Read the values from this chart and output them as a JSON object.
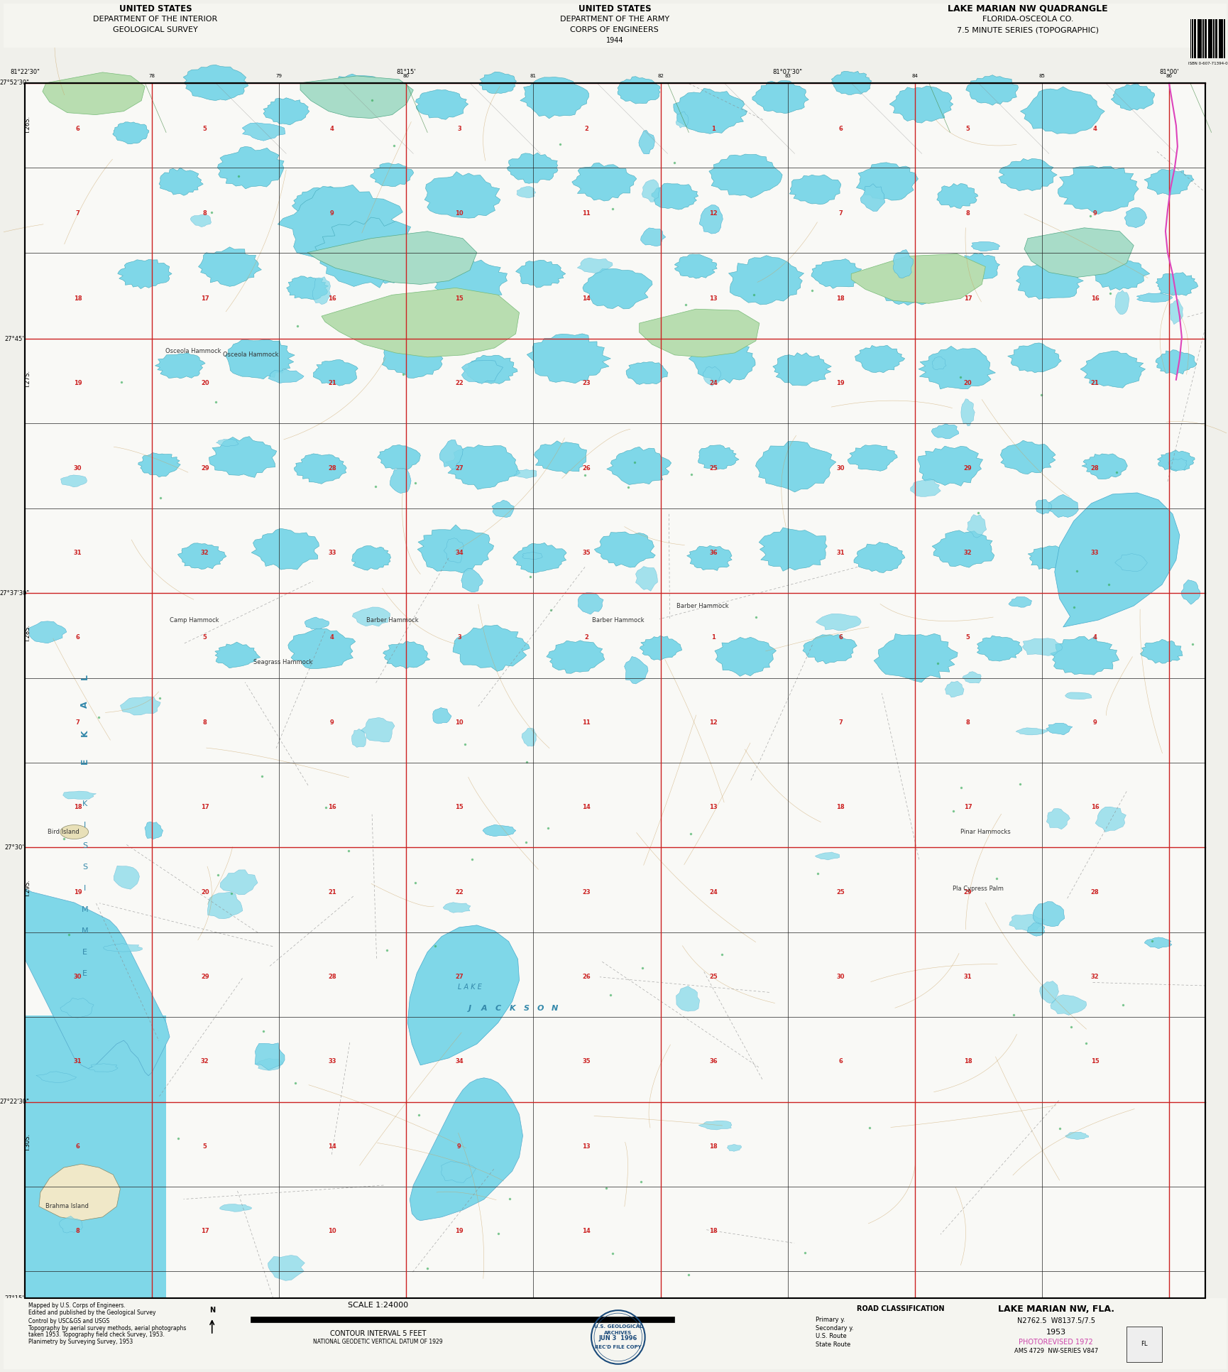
{
  "title_left_line1": "UNITED STATES",
  "title_left_line2": "DEPARTMENT OF THE INTERIOR",
  "title_left_line3": "GEOLOGICAL SURVEY",
  "title_center_line1": "UNITED STATES",
  "title_center_line2": "DEPARTMENT OF THE ARMY",
  "title_center_line3": "CORPS OF ENGINEERS",
  "title_center_line4": "1944",
  "title_right_line1": "LAKE MARIAN NW QUADRANGLE",
  "title_right_line2": "FLORIDA-OSCEOLA CO.",
  "title_right_line3": "7.5 MINUTE SERIES (TOPOGRAPHIC)",
  "map_name": "LAKE MARIAN NW, FLA.",
  "coords": "N2762.5  W8137.5/7.5",
  "year": "1953",
  "photorevised": "PHOTOREVISED 1972",
  "ams": "AMS 4729  NW-SERIES V847",
  "scale": "SCALE 1:24000",
  "contour_interval": "CONTOUR INTERVAL 5 FEET",
  "bg_color": "#f5f5f0",
  "water_color": "#7fd7e8",
  "swamp_color": "#b8e8d8",
  "veg_color": "#c8e8c0",
  "grid_color_black": "#000000",
  "grid_color_red": "#cc0000",
  "grid_color_blue": "#0077aa",
  "road_color_magenta": "#cc44aa",
  "stamp_color": "#1a4a7a",
  "stamp_date": "JUN 3  1996",
  "stamp_text": "REC'D FILE COPY",
  "photorevised_color": "#cc44aa",
  "border_color": "#000000"
}
